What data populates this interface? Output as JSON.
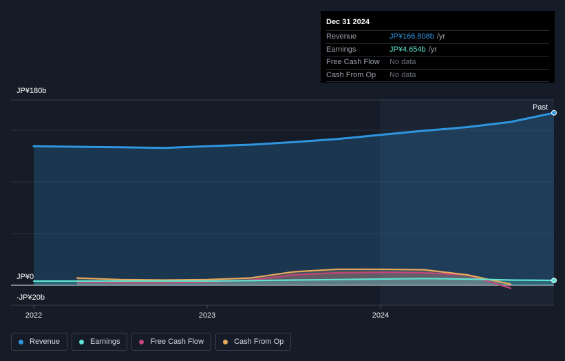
{
  "tooltip": {
    "date": "Dec 31 2024",
    "rows": [
      {
        "label": "Revenue",
        "value": "JP¥166.808b",
        "unit": "/yr"
      },
      {
        "label": "Earnings",
        "value": "JP¥4.654b",
        "unit": "/yr"
      },
      {
        "label": "Free Cash Flow",
        "value": "No data"
      },
      {
        "label": "Cash From Op",
        "value": "No data"
      }
    ]
  },
  "chart_data": {
    "type": "line",
    "y_unit": "JP¥ billions",
    "ylim": [
      -20,
      180
    ],
    "y_tick_labels": [
      "JP¥180b",
      "JP¥0",
      "-JP¥20b"
    ],
    "x_tick_labels": [
      "2022",
      "2023",
      "2024"
    ],
    "past_label": "Past",
    "series": [
      {
        "name": "Revenue",
        "color": "#2f96e0",
        "points": [
          [
            2022.0,
            134.5
          ],
          [
            2022.5,
            133.5
          ],
          [
            2022.75,
            132.8
          ],
          [
            2023.0,
            134.5
          ],
          [
            2023.25,
            136.0
          ],
          [
            2023.5,
            138.5
          ],
          [
            2023.75,
            141.5
          ],
          [
            2024.0,
            145.5
          ],
          [
            2024.25,
            149.5
          ],
          [
            2024.5,
            153.0
          ],
          [
            2024.75,
            158.0
          ],
          [
            2025.0,
            166.8
          ]
        ]
      },
      {
        "name": "Earnings",
        "color": "#5ee4d0",
        "points": [
          [
            2022.0,
            4.0
          ],
          [
            2022.5,
            4.0
          ],
          [
            2023.0,
            4.0
          ],
          [
            2023.25,
            4.5
          ],
          [
            2023.5,
            5.0
          ],
          [
            2023.75,
            5.5
          ],
          [
            2024.0,
            6.0
          ],
          [
            2024.25,
            6.5
          ],
          [
            2024.5,
            6.0
          ],
          [
            2024.75,
            5.0
          ],
          [
            2025.0,
            4.654
          ]
        ]
      },
      {
        "name": "Free Cash Flow",
        "color": "#c2457b",
        "points": [
          [
            2022.25,
            3.0
          ],
          [
            2022.5,
            2.5
          ],
          [
            2022.75,
            2.5
          ],
          [
            2023.0,
            3.0
          ],
          [
            2023.25,
            5.0
          ],
          [
            2023.5,
            10.0
          ],
          [
            2023.75,
            12.0
          ],
          [
            2024.0,
            12.5
          ],
          [
            2024.25,
            12.0
          ],
          [
            2024.5,
            10.0
          ],
          [
            2024.75,
            -3.0
          ]
        ]
      },
      {
        "name": "Cash From Op",
        "color": "#e7a85b",
        "points": [
          [
            2022.25,
            7.0
          ],
          [
            2022.5,
            5.5
          ],
          [
            2022.75,
            5.0
          ],
          [
            2023.0,
            5.5
          ],
          [
            2023.25,
            7.0
          ],
          [
            2023.5,
            13.0
          ],
          [
            2023.75,
            15.5
          ],
          [
            2024.0,
            15.5
          ],
          [
            2024.25,
            15.0
          ],
          [
            2024.5,
            10.0
          ],
          [
            2024.75,
            1.0
          ]
        ]
      }
    ]
  },
  "legend": [
    {
      "label": "Revenue",
      "color": "#2f96e0"
    },
    {
      "label": "Earnings",
      "color": "#5ee4d0"
    },
    {
      "label": "Free Cash Flow",
      "color": "#c2457b"
    },
    {
      "label": "Cash From Op",
      "color": "#e7a85b"
    }
  ]
}
